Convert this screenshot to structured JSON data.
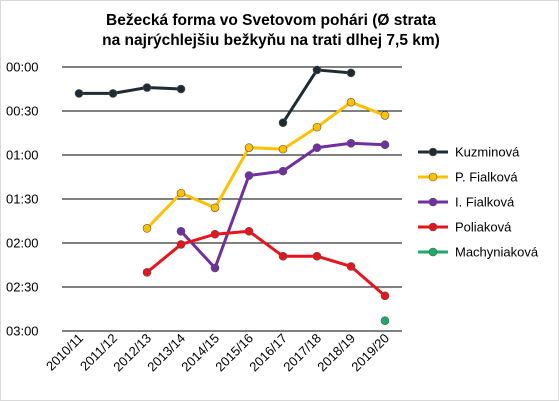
{
  "chart_data": {
    "type": "line",
    "title_line1": "Bežecká forma vo Svetovom pohári (Ø strata",
    "title_line2": "na najrýchlejšiu bežkyňu na trati dlhej 7,5 km)",
    "categories": [
      "2010/11",
      "2011/12",
      "2012/13",
      "2013/14",
      "2014/15",
      "2015/16",
      "2016/17",
      "2017/18",
      "2018/19",
      "2019/20"
    ],
    "y_tick_labels": [
      "00:00",
      "00:30",
      "01:00",
      "01:30",
      "02:00",
      "02:30",
      "03:00"
    ],
    "ylim_seconds": [
      0,
      180
    ],
    "y_inverted": true,
    "grid": true,
    "legend_position": "right",
    "series": [
      {
        "name": "Kuzminová",
        "color": "#1f2a33",
        "values": [
          18,
          18,
          14,
          15,
          null,
          null,
          38,
          2,
          4,
          null
        ]
      },
      {
        "name": "P. Fialková",
        "color": "#ffc000",
        "values": [
          null,
          null,
          110,
          86,
          96,
          55,
          56,
          41,
          24,
          33
        ]
      },
      {
        "name": "I. Fialková",
        "color": "#7030a0",
        "values": [
          null,
          null,
          null,
          112,
          137,
          74,
          71,
          55,
          52,
          53
        ]
      },
      {
        "name": "Poliaková",
        "color": "#e8141c",
        "values": [
          null,
          null,
          140,
          121,
          114,
          112,
          129,
          129,
          136,
          156
        ]
      },
      {
        "name": "Machyniaková",
        "color": "#1aaa6b",
        "values": [
          null,
          null,
          null,
          null,
          null,
          null,
          null,
          null,
          null,
          173
        ]
      }
    ]
  }
}
